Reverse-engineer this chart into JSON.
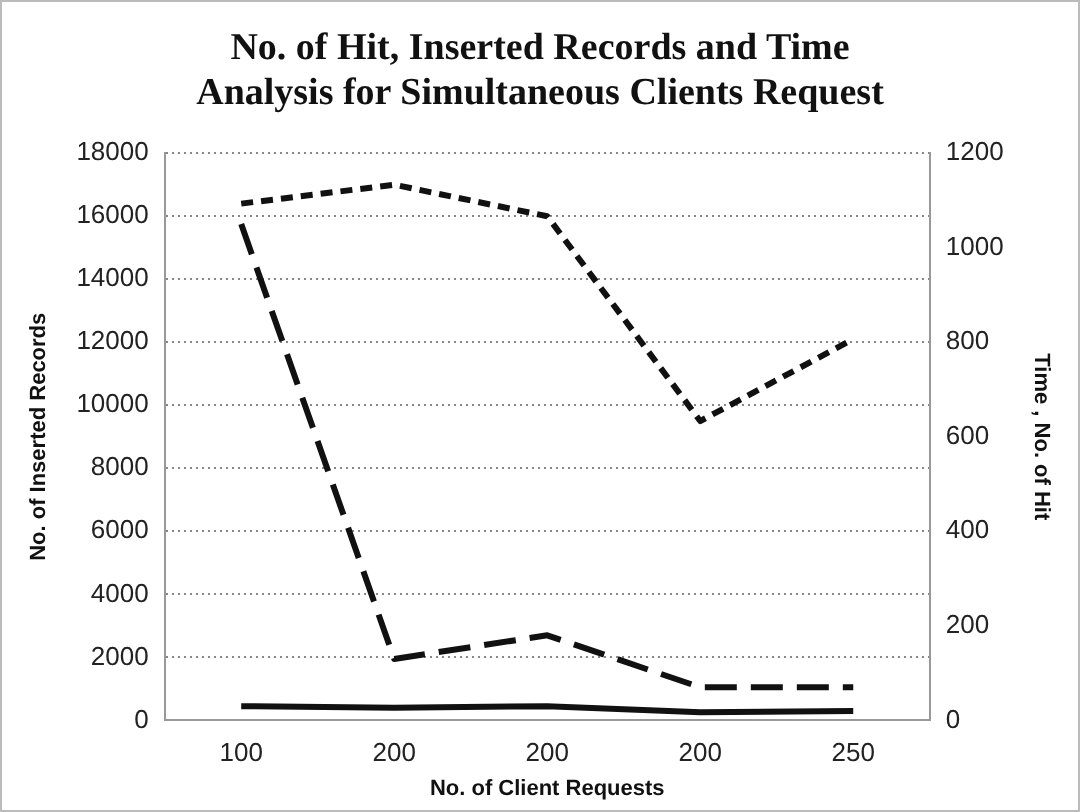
{
  "chart_data": {
    "type": "line",
    "title": "No. of Hit, Inserted Records and Time Analysis for Simultaneous Clients Request",
    "xlabel": "No. of Client Requests",
    "ylabel": "No. of Inserted Records",
    "y2label": "Time , No. of Hit",
    "categories": [
      "100",
      "200",
      "200",
      "200",
      "250"
    ],
    "series": [
      {
        "color": "#111111",
        "line_style": "dashed",
        "values": [
          16400,
          17000,
          16000,
          9500,
          12100
        ]
      },
      {
        "color": "#111111",
        "line_style": "dashed",
        "axis": "y2",
        "values": [
          1050,
          130,
          180,
          70,
          70
        ]
      },
      {
        "color": "#111111",
        "line_style": "solid",
        "axis": "y2",
        "values": [
          30,
          27,
          30,
          17,
          20
        ]
      }
    ],
    "ylim": [
      0,
      18000
    ],
    "yticks": [
      0,
      2000,
      4000,
      6000,
      8000,
      10000,
      12000,
      14000,
      16000,
      18000
    ],
    "y2lim": [
      0,
      1200
    ],
    "y2ticks": [
      0,
      200,
      400,
      600,
      800,
      1000,
      1200
    ],
    "grid": "y",
    "legend": false,
    "marker": "none"
  }
}
